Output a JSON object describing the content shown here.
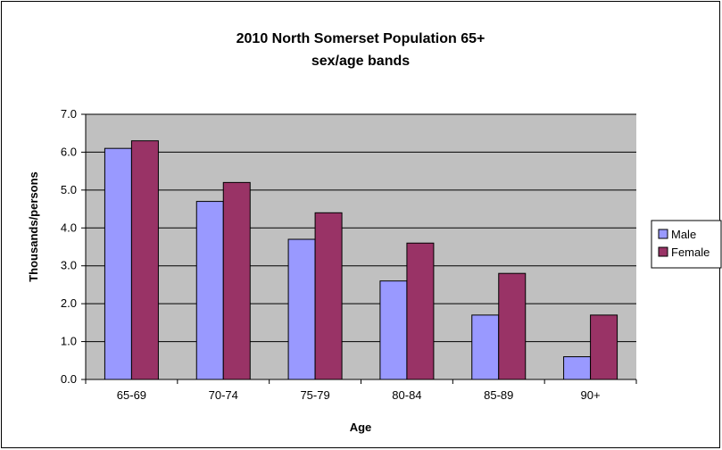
{
  "chart_data": {
    "type": "bar",
    "title": "2010 North Somerset Population 65+",
    "subtitle": "sex/age bands",
    "xlabel": "Age",
    "ylabel": "Thousands/persons",
    "categories": [
      "65-69",
      "70-74",
      "75-79",
      "80-84",
      "85-89",
      "90+"
    ],
    "series": [
      {
        "name": "Male",
        "color": "#9999ff",
        "values": [
          6.1,
          4.7,
          3.7,
          2.6,
          1.7,
          0.6
        ]
      },
      {
        "name": "Female",
        "color": "#993366",
        "values": [
          6.3,
          5.2,
          4.4,
          3.6,
          2.8,
          1.7
        ]
      }
    ],
    "ylim": [
      0,
      7
    ],
    "yticks": [
      "0.0",
      "1.0",
      "2.0",
      "3.0",
      "4.0",
      "5.0",
      "6.0",
      "7.0"
    ],
    "grid": true,
    "plot_background": "#c0c0c0",
    "legend_position": "right"
  }
}
